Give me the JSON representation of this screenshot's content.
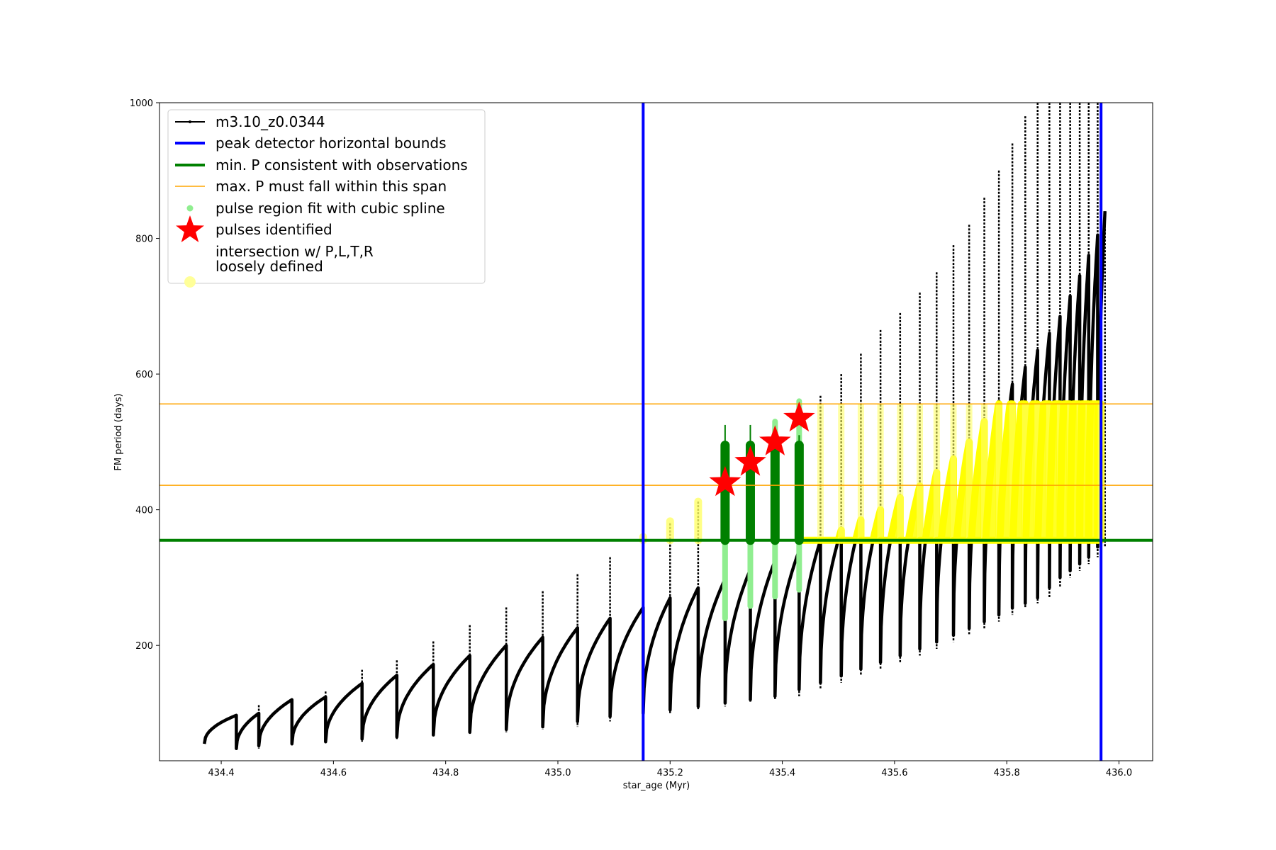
{
  "chart_data": {
    "type": "line",
    "title": "",
    "xlabel": "star_age (Myr)",
    "ylabel": "FM period (days)",
    "xlim": [
      434.29,
      436.06
    ],
    "ylim": [
      30,
      1000
    ],
    "xticks": [
      "434.4",
      "434.6",
      "434.8",
      "435.0",
      "435.2",
      "435.4",
      "435.6",
      "435.8",
      "436.0"
    ],
    "xtick_values": [
      434.4,
      434.6,
      434.8,
      435.0,
      435.2,
      435.4,
      435.6,
      435.8,
      436.0
    ],
    "yticks": [
      "200",
      "400",
      "600",
      "800",
      "1000"
    ],
    "ytick_values": [
      200,
      400,
      600,
      800,
      1000
    ],
    "grid": false,
    "legend_position": "top-left",
    "legend": [
      {
        "label": "m3.10_z0.0344",
        "marker": "line-dot",
        "color": "#000000"
      },
      {
        "label": "peak detector horizontal bounds",
        "marker": "thick-line",
        "color": "#0000ff"
      },
      {
        "label": "min. P consistent with observations",
        "marker": "thick-line",
        "color": "#008000"
      },
      {
        "label": "max. P must fall within this span",
        "marker": "thin-line",
        "color": "#ffa500"
      },
      {
        "label": "pulse region fit with cubic spline",
        "marker": "dot",
        "color": "#90ee90"
      },
      {
        "label": "pulses identified",
        "marker": "star",
        "color": "#ff0000"
      },
      {
        "label": "intersection w/ P,L,T,R",
        "label2": "loosely defined",
        "marker": "circle",
        "color": "#ffff99"
      }
    ],
    "series": [
      {
        "name": "m3.10_z0.0344",
        "color": "#000000",
        "cycles": [
          {
            "start": 434.37,
            "end": 434.427,
            "min": 55,
            "max": 97,
            "spike": 97
          },
          {
            "start": 434.427,
            "end": 434.467,
            "min": 48,
            "max": 100,
            "spike": 112
          },
          {
            "start": 434.467,
            "end": 434.526,
            "min": 52,
            "max": 120,
            "spike": 120
          },
          {
            "start": 434.526,
            "end": 434.586,
            "min": 55,
            "max": 124,
            "spike": 132
          },
          {
            "start": 434.586,
            "end": 434.651,
            "min": 58,
            "max": 144,
            "spike": 164
          },
          {
            "start": 434.651,
            "end": 434.713,
            "min": 62,
            "max": 156,
            "spike": 178
          },
          {
            "start": 434.713,
            "end": 434.778,
            "min": 65,
            "max": 172,
            "spike": 206
          },
          {
            "start": 434.778,
            "end": 434.843,
            "min": 68,
            "max": 185,
            "spike": 230
          },
          {
            "start": 434.843,
            "end": 434.908,
            "min": 72,
            "max": 200,
            "spike": 256
          },
          {
            "start": 434.908,
            "end": 434.973,
            "min": 76,
            "max": 212,
            "spike": 280
          },
          {
            "start": 434.973,
            "end": 435.035,
            "min": 80,
            "max": 226,
            "spike": 305
          },
          {
            "start": 435.035,
            "end": 435.093,
            "min": 88,
            "max": 240,
            "spike": 330
          },
          {
            "start": 435.093,
            "end": 435.152,
            "min": 95,
            "max": 256,
            "spike": 358
          },
          {
            "start": 435.152,
            "end": 435.2,
            "min": 100,
            "max": 270,
            "spike": 380
          },
          {
            "start": 435.2,
            "end": 435.25,
            "min": 105,
            "max": 285,
            "spike": 412
          },
          {
            "start": 435.25,
            "end": 435.298,
            "min": 110,
            "max": 298,
            "spike": 445
          },
          {
            "start": 435.298,
            "end": 435.343,
            "min": 115,
            "max": 312,
            "spike": 470
          },
          {
            "start": 435.343,
            "end": 435.387,
            "min": 120,
            "max": 325,
            "spike": 500
          },
          {
            "start": 435.387,
            "end": 435.43,
            "min": 125,
            "max": 340,
            "spike": 535
          },
          {
            "start": 435.43,
            "end": 435.468,
            "min": 135,
            "max": 355,
            "spike": 568
          },
          {
            "start": 435.468,
            "end": 435.505,
            "min": 145,
            "max": 370,
            "spike": 600
          },
          {
            "start": 435.505,
            "end": 435.54,
            "min": 155,
            "max": 385,
            "spike": 630
          },
          {
            "start": 435.54,
            "end": 435.575,
            "min": 165,
            "max": 400,
            "spike": 665
          },
          {
            "start": 435.575,
            "end": 435.61,
            "min": 175,
            "max": 418,
            "spike": 690
          },
          {
            "start": 435.61,
            "end": 435.645,
            "min": 185,
            "max": 435,
            "spike": 720
          },
          {
            "start": 435.645,
            "end": 435.675,
            "min": 195,
            "max": 455,
            "spike": 750
          },
          {
            "start": 435.675,
            "end": 435.705,
            "min": 205,
            "max": 475,
            "spike": 790
          },
          {
            "start": 435.705,
            "end": 435.733,
            "min": 215,
            "max": 500,
            "spike": 820
          },
          {
            "start": 435.733,
            "end": 435.76,
            "min": 225,
            "max": 530,
            "spike": 860
          },
          {
            "start": 435.76,
            "end": 435.786,
            "min": 235,
            "max": 560,
            "spike": 900
          },
          {
            "start": 435.786,
            "end": 435.81,
            "min": 245,
            "max": 585,
            "spike": 940
          },
          {
            "start": 435.81,
            "end": 435.833,
            "min": 255,
            "max": 610,
            "spike": 980
          },
          {
            "start": 435.833,
            "end": 435.855,
            "min": 262,
            "max": 635,
            "spike": 1000
          },
          {
            "start": 435.855,
            "end": 435.876,
            "min": 270,
            "max": 660,
            "spike": 1000
          },
          {
            "start": 435.876,
            "end": 435.895,
            "min": 285,
            "max": 685,
            "spike": 1000
          },
          {
            "start": 435.895,
            "end": 435.913,
            "min": 300,
            "max": 715,
            "spike": 1000
          },
          {
            "start": 435.913,
            "end": 435.93,
            "min": 310,
            "max": 745,
            "spike": 1000
          },
          {
            "start": 435.93,
            "end": 435.946,
            "min": 320,
            "max": 775,
            "spike": 1000
          },
          {
            "start": 435.946,
            "end": 435.962,
            "min": 330,
            "max": 805,
            "spike": 1000
          },
          {
            "start": 435.962,
            "end": 435.975,
            "min": 345,
            "max": 840,
            "spike": 840
          }
        ]
      },
      {
        "name": "pulse region fit with cubic spline",
        "color": "#90ee90",
        "regions": [
          {
            "x": 435.298,
            "ymin": 240,
            "ymax": 470
          },
          {
            "x": 435.343,
            "ymin": 258,
            "ymax": 495
          },
          {
            "x": 435.387,
            "ymin": 272,
            "ymax": 530
          },
          {
            "x": 435.43,
            "ymin": 282,
            "ymax": 560
          }
        ]
      },
      {
        "name": "pulses identified",
        "color": "#ff0000",
        "points": [
          {
            "x": 435.298,
            "y": 440
          },
          {
            "x": 435.343,
            "y": 470
          },
          {
            "x": 435.387,
            "y": 500
          },
          {
            "x": 435.43,
            "y": 535
          }
        ]
      }
    ],
    "vlines": [
      {
        "name": "peak detector horizontal bounds",
        "x": 435.152,
        "color": "#0000ff"
      },
      {
        "name": "peak detector horizontal bounds",
        "x": 435.968,
        "color": "#0000ff"
      }
    ],
    "hlines": [
      {
        "name": "min. P consistent with observations",
        "y": 355,
        "color": "#008000"
      },
      {
        "name": "max. P must fall within this span",
        "y": 436,
        "color": "#ffa500"
      },
      {
        "name": "max. P must fall within this span",
        "y": 556,
        "color": "#ffa500"
      }
    ],
    "green_bands": [
      {
        "x": 435.298,
        "ymin": 355,
        "ymax": 495,
        "spike": 525
      },
      {
        "x": 435.343,
        "ymin": 355,
        "ymax": 495,
        "spike": 525
      },
      {
        "x": 435.387,
        "ymin": 355,
        "ymax": 495,
        "spike": 510
      },
      {
        "x": 435.43,
        "ymin": 355,
        "ymax": 495,
        "spike": 510
      }
    ],
    "intersection_region": {
      "color": "#ffff00",
      "ymin": 355,
      "ymax": 556,
      "x_start": 435.43,
      "x_end": 435.968
    }
  }
}
